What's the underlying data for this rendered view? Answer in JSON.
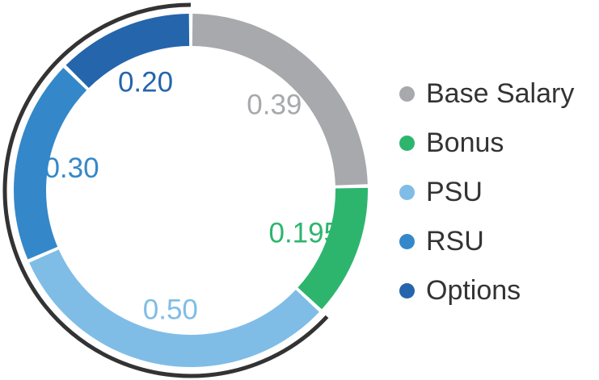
{
  "chart_data": {
    "type": "pie",
    "subtype": "donut",
    "categories": [
      "Base Salary",
      "Bonus",
      "PSU",
      "RSU",
      "Options"
    ],
    "values": [
      0.39,
      0.195,
      0.5,
      0.3,
      0.2
    ],
    "value_labels": [
      "0.39",
      "0.195",
      "0.50",
      "0.30",
      "0.20"
    ],
    "colors": [
      "#a7a9ac",
      "#2db56e",
      "#7fbde6",
      "#3488c9",
      "#2565ac"
    ],
    "legend_position": "right",
    "outer_arc_color": "#333333"
  }
}
